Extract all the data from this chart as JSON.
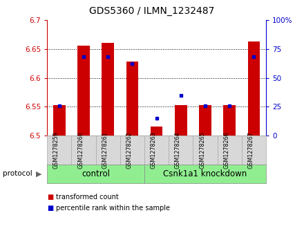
{
  "title": "GDS5360 / ILMN_1232487",
  "samples": [
    "GSM1278259",
    "GSM1278260",
    "GSM1278261",
    "GSM1278262",
    "GSM1278263",
    "GSM1278264",
    "GSM1278265",
    "GSM1278266",
    "GSM1278267"
  ],
  "transformed_counts": [
    6.553,
    6.656,
    6.66,
    6.628,
    6.516,
    6.553,
    6.553,
    6.553,
    6.663
  ],
  "percentile_ranks": [
    26,
    68,
    68,
    62,
    15,
    35,
    26,
    26,
    68
  ],
  "y_min": 6.5,
  "y_max": 6.7,
  "y_ticks": [
    6.5,
    6.55,
    6.6,
    6.65,
    6.7
  ],
  "right_y_ticks": [
    0,
    25,
    50,
    75,
    100
  ],
  "bar_color": "#cc0000",
  "dot_color": "#0000cc",
  "bar_width": 0.5,
  "n_control": 4,
  "n_knockdown": 5,
  "control_label": "control",
  "knockdown_label": "Csnk1a1 knockdown",
  "protocol_label": "protocol",
  "legend_tc": "transformed count",
  "legend_pr": "percentile rank within the sample",
  "left_label_color": "#cc0000",
  "right_label_color": "#0000cc",
  "group_green": "#90ee90",
  "sample_bg": "#d8d8d8",
  "plot_bg": "#ffffff"
}
